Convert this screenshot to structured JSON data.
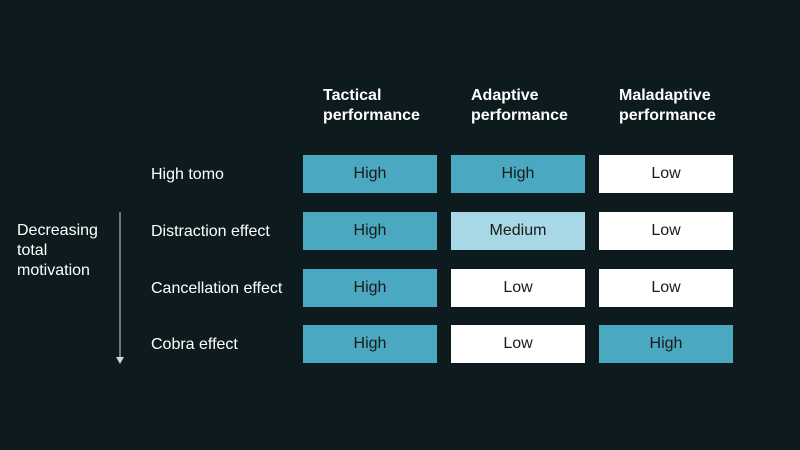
{
  "columns": [
    "Tactical\nperformance",
    "Adaptive\nperformance",
    "Maladaptive\nperformance"
  ],
  "side_label": "Decreasing total motivation",
  "rows": [
    {
      "label": "High tomo",
      "values": [
        "High",
        "High",
        "Low"
      ]
    },
    {
      "label": "Distraction effect",
      "values": [
        "High",
        "Medium",
        "Low"
      ]
    },
    {
      "label": "Cancellation effect",
      "values": [
        "High",
        "Low",
        "Low"
      ]
    },
    {
      "label": "Cobra effect",
      "values": [
        "High",
        "Low",
        "High"
      ]
    }
  ],
  "colors": {
    "background": "#0d1b1e",
    "high": "#4aa8c0",
    "medium": "#a8d8e6",
    "low": "#ffffff"
  }
}
